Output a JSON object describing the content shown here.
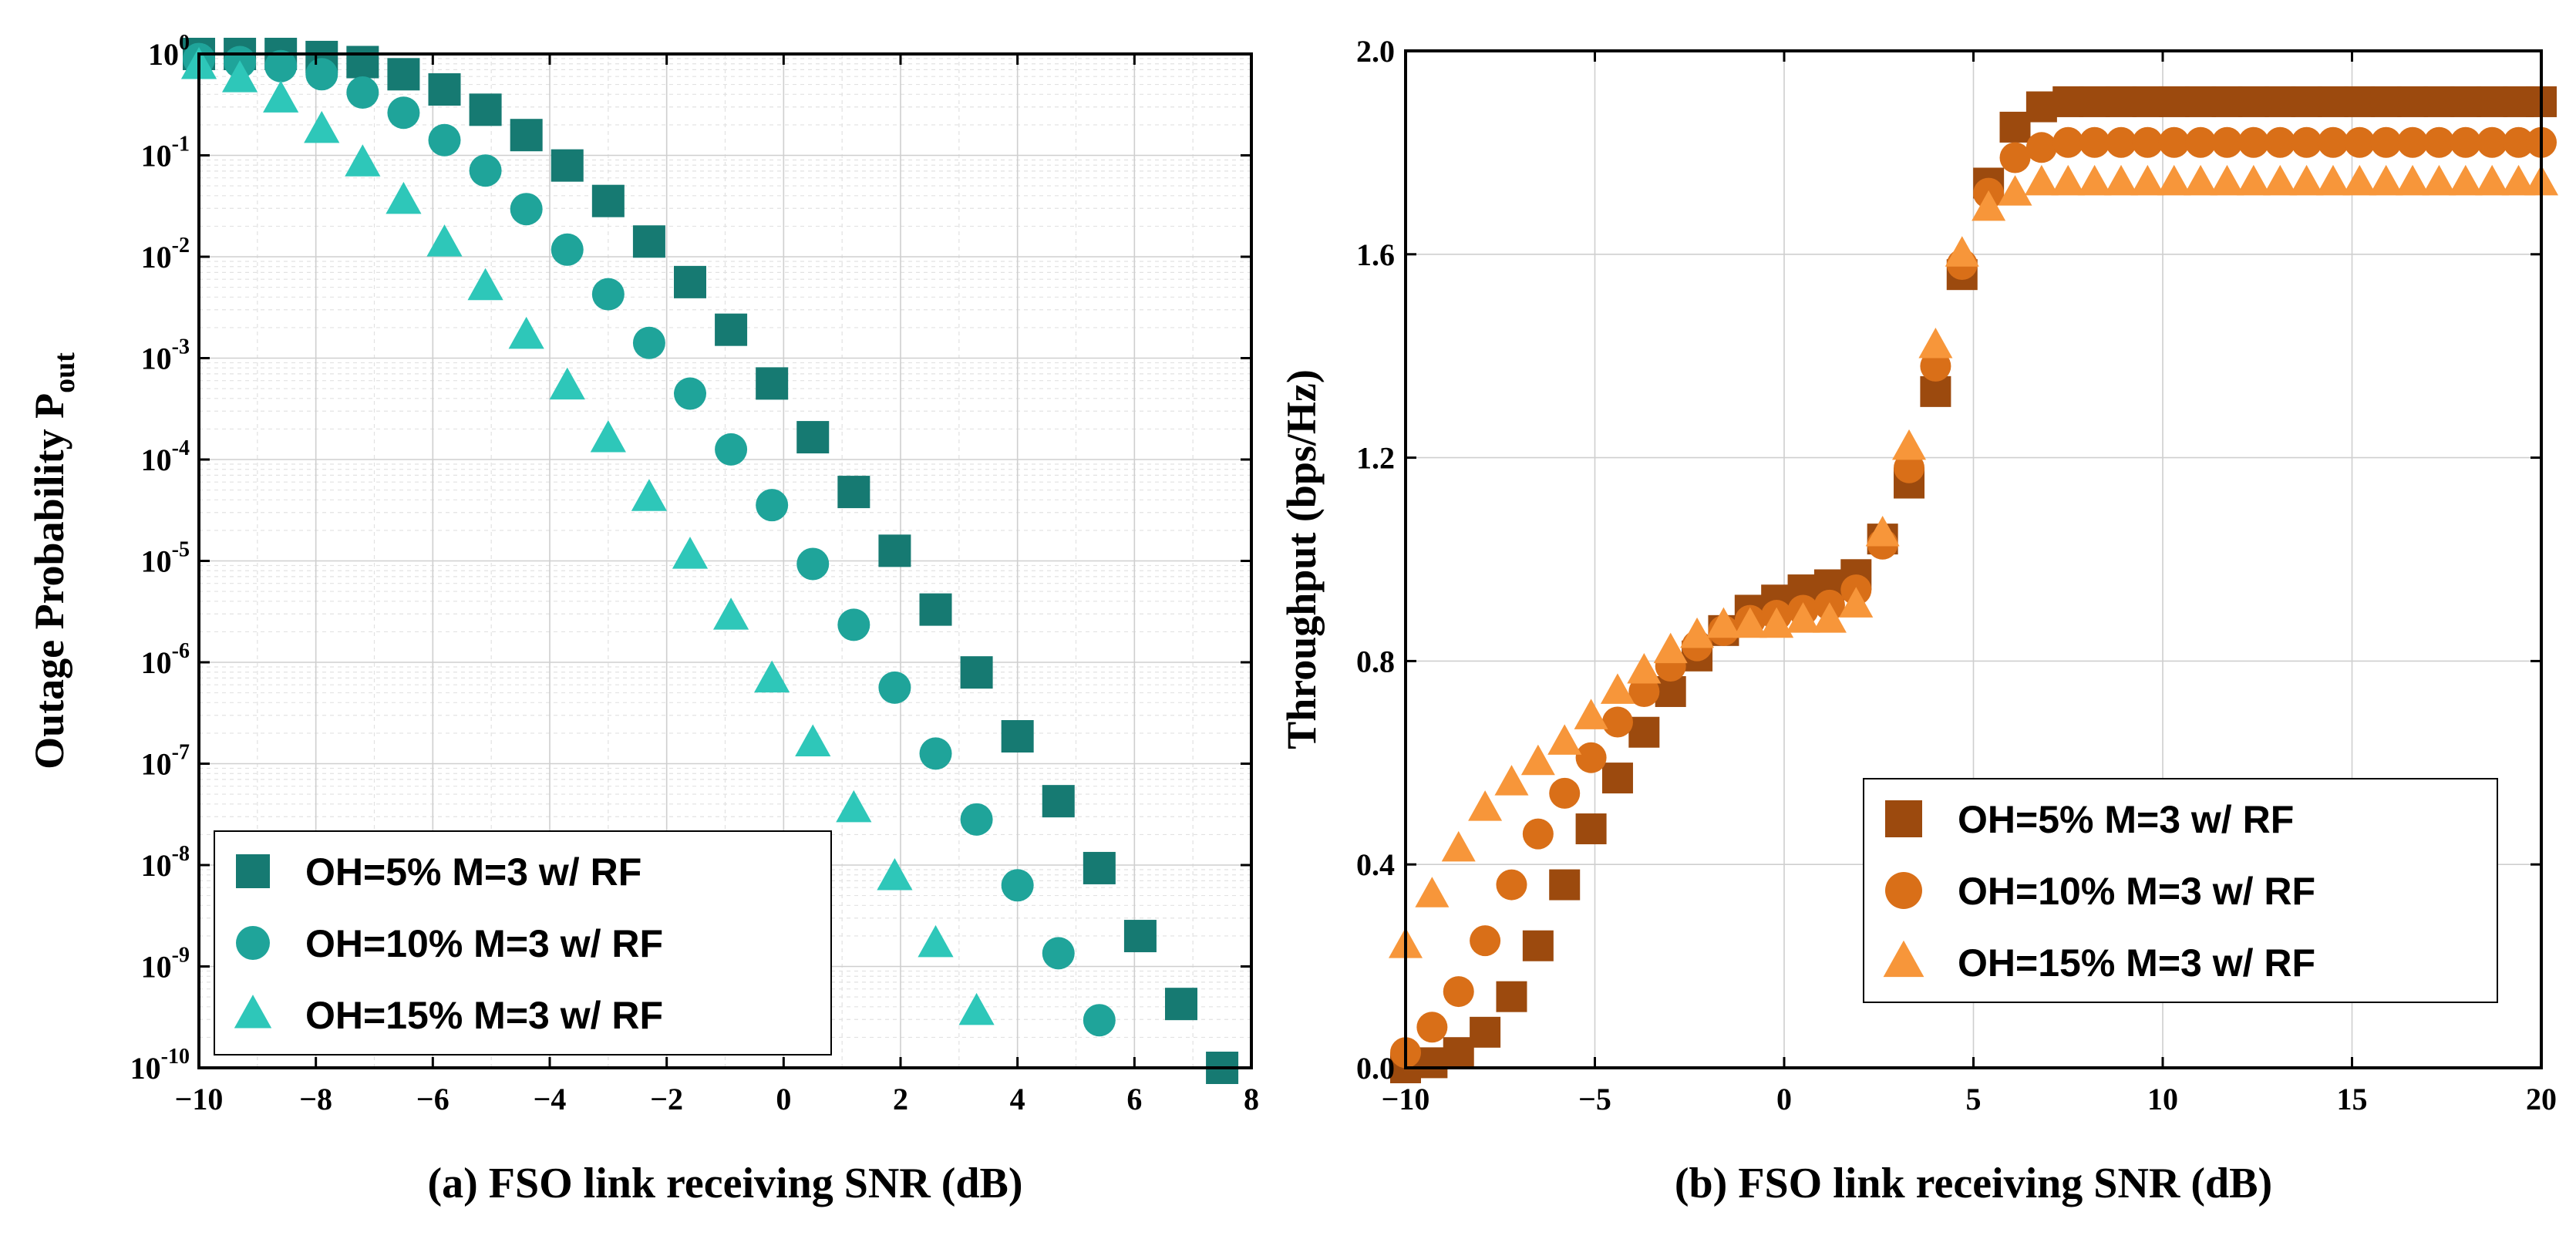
{
  "chart_data": [
    {
      "type": "scatter",
      "panel": "a",
      "caption": "(a) FSO link receiving SNR (dB)",
      "ylabel_main": "Outage Probability P",
      "ylabel_sub": "out",
      "yscale": "log",
      "xlim": [
        -10,
        8
      ],
      "ylim_exp": [
        -10,
        0
      ],
      "xticks": [
        -10,
        -8,
        -6,
        -4,
        -2,
        0,
        2,
        4,
        6,
        8
      ],
      "xtick_labels": [
        "−10",
        "−8",
        "−6",
        "−4",
        "−2",
        "0",
        "2",
        "4",
        "6",
        "8"
      ],
      "ytick_exponents": [
        0,
        -1,
        -2,
        -3,
        -4,
        -5,
        -6,
        -7,
        -8,
        -9,
        -10
      ],
      "ytick_base": "10",
      "legend_position": "bottom-left",
      "series": [
        {
          "name": "OH=5% M=3 w/ RF",
          "marker": "square",
          "color": "#167a72",
          "x": [
            -10,
            -9.3,
            -8.6,
            -7.9,
            -7.2,
            -6.5,
            -5.8,
            -5.1,
            -4.4,
            -3.7,
            -3.0,
            -2.3,
            -1.6,
            -0.9,
            -0.2,
            0.5,
            1.2,
            1.9,
            2.6,
            3.3,
            4.0,
            4.7,
            5.4,
            6.1,
            6.8,
            7.5
          ],
          "log10_y": [
            0,
            0,
            0,
            -0.03,
            -0.08,
            -0.2,
            -0.35,
            -0.55,
            -0.8,
            -1.1,
            -1.45,
            -1.85,
            -2.25,
            -2.72,
            -3.25,
            -3.78,
            -4.32,
            -4.9,
            -5.48,
            -6.1,
            -6.73,
            -7.37,
            -8.03,
            -8.7,
            -9.37,
            -10.0
          ]
        },
        {
          "name": "OH=10% M=3 w/ RF",
          "marker": "circle",
          "color": "#1fa49a",
          "x": [
            -10,
            -9.3,
            -8.6,
            -7.9,
            -7.2,
            -6.5,
            -5.8,
            -5.1,
            -4.4,
            -3.7,
            -3.0,
            -2.3,
            -1.6,
            -0.9,
            -0.2,
            0.5,
            1.2,
            1.9,
            2.6,
            3.3,
            4.0,
            4.7,
            5.4
          ],
          "log10_y": [
            -0.05,
            -0.08,
            -0.12,
            -0.2,
            -0.38,
            -0.58,
            -0.85,
            -1.15,
            -1.53,
            -1.93,
            -2.37,
            -2.85,
            -3.35,
            -3.9,
            -4.45,
            -5.03,
            -5.63,
            -6.25,
            -6.9,
            -7.55,
            -8.2,
            -8.87,
            -9.53
          ]
        },
        {
          "name": "OH=15% M=3 w/ RF",
          "marker": "triangle",
          "color": "#2ec7b9",
          "x": [
            -10,
            -9.3,
            -8.6,
            -7.9,
            -7.2,
            -6.5,
            -5.8,
            -5.1,
            -4.4,
            -3.7,
            -3.0,
            -2.3,
            -1.6,
            -0.9,
            -0.2,
            0.5,
            1.2,
            1.9,
            2.6,
            3.3
          ],
          "log10_y": [
            -0.12,
            -0.25,
            -0.45,
            -0.75,
            -1.08,
            -1.45,
            -1.87,
            -2.3,
            -2.78,
            -3.28,
            -3.8,
            -4.38,
            -4.95,
            -5.55,
            -6.17,
            -6.8,
            -7.45,
            -8.12,
            -8.78,
            -9.45
          ]
        }
      ]
    },
    {
      "type": "scatter",
      "panel": "b",
      "caption": "(b) FSO link receiving SNR (dB)",
      "ylabel": "Throughput (bps/Hz)",
      "xlim": [
        -10,
        20
      ],
      "ylim": [
        0,
        2.0
      ],
      "xticks": [
        -10,
        -5,
        0,
        5,
        10,
        15,
        20
      ],
      "xtick_labels": [
        "−10",
        "−5",
        "0",
        "5",
        "10",
        "15",
        "20"
      ],
      "yticks": [
        0,
        0.4,
        0.8,
        1.2,
        1.6,
        2.0
      ],
      "ytick_labels": [
        "0.0",
        "0.4",
        "0.8",
        "1.2",
        "1.6",
        "2.0"
      ],
      "legend_position": "bottom-right",
      "series": [
        {
          "name": "OH=5% M=3 w/ RF",
          "marker": "square",
          "color": "#9c4a0e",
          "x": [
            -10,
            -9.3,
            -8.6,
            -7.9,
            -7.2,
            -6.5,
            -5.8,
            -5.1,
            -4.4,
            -3.7,
            -3.0,
            -2.3,
            -1.6,
            -0.9,
            -0.2,
            0.5,
            1.2,
            1.9,
            2.6,
            3.3,
            4.0,
            4.7,
            5.4,
            6.1,
            6.8,
            7.5,
            8.2,
            8.9,
            9.6,
            10.3,
            11.0,
            11.7,
            12.4,
            13.1,
            13.8,
            14.5,
            15.2,
            15.9,
            16.6,
            17.3,
            18.0,
            18.7,
            19.4,
            20.0
          ],
          "y": [
            0.0,
            0.01,
            0.03,
            0.07,
            0.14,
            0.24,
            0.36,
            0.47,
            0.57,
            0.66,
            0.74,
            0.81,
            0.86,
            0.9,
            0.92,
            0.94,
            0.95,
            0.97,
            1.04,
            1.15,
            1.33,
            1.56,
            1.74,
            1.85,
            1.89,
            1.9,
            1.9,
            1.9,
            1.9,
            1.9,
            1.9,
            1.9,
            1.9,
            1.9,
            1.9,
            1.9,
            1.9,
            1.9,
            1.9,
            1.9,
            1.9,
            1.9,
            1.9,
            1.9
          ]
        },
        {
          "name": "OH=10% M=3 w/ RF",
          "marker": "circle",
          "color": "#d96f18",
          "x": [
            -10,
            -9.3,
            -8.6,
            -7.9,
            -7.2,
            -6.5,
            -5.8,
            -5.1,
            -4.4,
            -3.7,
            -3.0,
            -2.3,
            -1.6,
            -0.9,
            -0.2,
            0.5,
            1.2,
            1.9,
            2.6,
            3.3,
            4.0,
            4.7,
            5.4,
            6.1,
            6.8,
            7.5,
            8.2,
            8.9,
            9.6,
            10.3,
            11.0,
            11.7,
            12.4,
            13.1,
            13.8,
            14.5,
            15.2,
            15.9,
            16.6,
            17.3,
            18.0,
            18.7,
            19.4,
            20.0
          ],
          "y": [
            0.03,
            0.08,
            0.15,
            0.25,
            0.36,
            0.46,
            0.54,
            0.61,
            0.68,
            0.74,
            0.79,
            0.83,
            0.86,
            0.88,
            0.89,
            0.9,
            0.91,
            0.94,
            1.03,
            1.18,
            1.38,
            1.58,
            1.72,
            1.79,
            1.81,
            1.82,
            1.82,
            1.82,
            1.82,
            1.82,
            1.82,
            1.82,
            1.82,
            1.82,
            1.82,
            1.82,
            1.82,
            1.82,
            1.82,
            1.82,
            1.82,
            1.82,
            1.82,
            1.82
          ]
        },
        {
          "name": "OH=15% M=3 w/ RF",
          "marker": "triangle",
          "color": "#f7963a",
          "x": [
            -10,
            -9.3,
            -8.6,
            -7.9,
            -7.2,
            -6.5,
            -5.8,
            -5.1,
            -4.4,
            -3.7,
            -3.0,
            -2.3,
            -1.6,
            -0.9,
            -0.2,
            0.5,
            1.2,
            1.9,
            2.6,
            3.3,
            4.0,
            4.7,
            5.4,
            6.1,
            6.8,
            7.5,
            8.2,
            8.9,
            9.6,
            10.3,
            11.0,
            11.7,
            12.4,
            13.1,
            13.8,
            14.5,
            15.2,
            15.9,
            16.6,
            17.3,
            18.0,
            18.7,
            19.4,
            20.0
          ],
          "y": [
            0.24,
            0.34,
            0.43,
            0.51,
            0.56,
            0.6,
            0.64,
            0.69,
            0.74,
            0.78,
            0.82,
            0.85,
            0.87,
            0.87,
            0.87,
            0.88,
            0.88,
            0.91,
            1.05,
            1.22,
            1.42,
            1.6,
            1.69,
            1.72,
            1.74,
            1.74,
            1.74,
            1.74,
            1.74,
            1.74,
            1.74,
            1.74,
            1.74,
            1.74,
            1.74,
            1.74,
            1.74,
            1.74,
            1.74,
            1.74,
            1.74,
            1.74,
            1.74,
            1.74
          ]
        }
      ]
    }
  ]
}
